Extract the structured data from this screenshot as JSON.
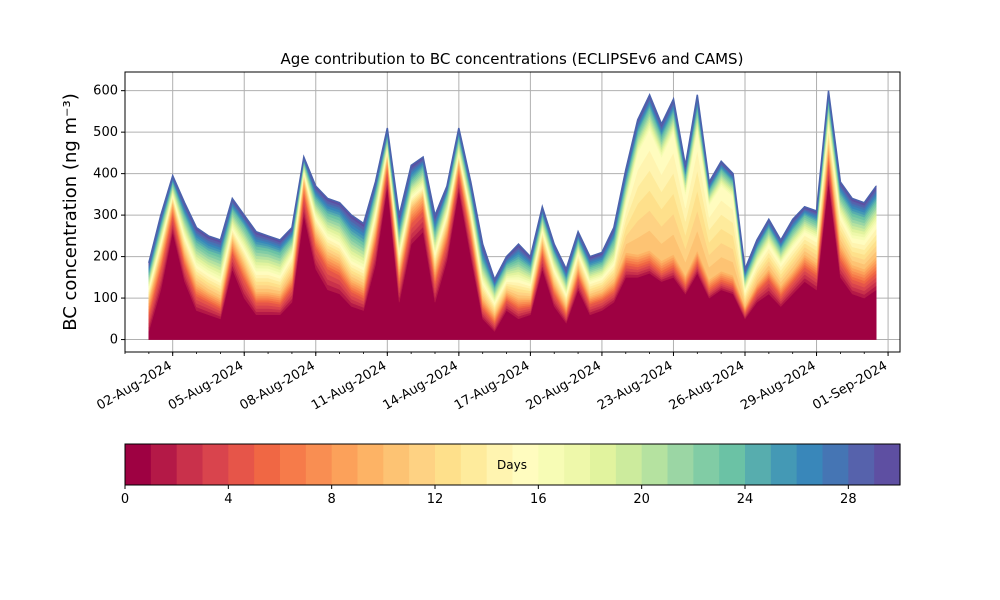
{
  "chart_data": {
    "type": "area",
    "stacked": true,
    "title": "Age contribution to BC concentrations (ECLIPSEv6 and CAMS)",
    "xlabel": "",
    "ylabel": "BC concentration (ng m⁻³)",
    "ylim": [
      -30,
      645
    ],
    "xlim": [
      "2024-07-31",
      "2024-09-01 12:00"
    ],
    "grid": true,
    "x_tick_labels": [
      "02-Aug-2024",
      "05-Aug-2024",
      "08-Aug-2024",
      "11-Aug-2024",
      "14-Aug-2024",
      "17-Aug-2024",
      "20-Aug-2024",
      "23-Aug-2024",
      "26-Aug-2024",
      "29-Aug-2024",
      "01-Sep-2024"
    ],
    "y_ticks": [
      0,
      100,
      200,
      300,
      400,
      500,
      600
    ],
    "x": [
      "2024-08-01",
      "2024-08-01 12:00",
      "2024-08-02",
      "2024-08-02 12:00",
      "2024-08-03",
      "2024-08-03 12:00",
      "2024-08-04",
      "2024-08-04 12:00",
      "2024-08-05",
      "2024-08-05 12:00",
      "2024-08-06",
      "2024-08-06 12:00",
      "2024-08-07",
      "2024-08-07 12:00",
      "2024-08-08",
      "2024-08-08 12:00",
      "2024-08-09",
      "2024-08-09 12:00",
      "2024-08-10",
      "2024-08-10 12:00",
      "2024-08-11",
      "2024-08-11 12:00",
      "2024-08-12",
      "2024-08-12 12:00",
      "2024-08-13",
      "2024-08-13 12:00",
      "2024-08-14",
      "2024-08-14 12:00",
      "2024-08-15",
      "2024-08-15 12:00",
      "2024-08-16",
      "2024-08-16 12:00",
      "2024-08-17",
      "2024-08-17 12:00",
      "2024-08-18",
      "2024-08-18 12:00",
      "2024-08-19",
      "2024-08-19 12:00",
      "2024-08-20",
      "2024-08-20 12:00",
      "2024-08-21",
      "2024-08-21 12:00",
      "2024-08-22",
      "2024-08-22 12:00",
      "2024-08-23",
      "2024-08-23 12:00",
      "2024-08-24",
      "2024-08-24 12:00",
      "2024-08-25",
      "2024-08-25 12:00",
      "2024-08-26",
      "2024-08-26 12:00",
      "2024-08-27",
      "2024-08-27 12:00",
      "2024-08-28",
      "2024-08-28 12:00",
      "2024-08-29",
      "2024-08-29 12:00",
      "2024-08-30",
      "2024-08-30 12:00",
      "2024-08-31",
      "2024-08-31 12:00"
    ],
    "total": [
      185,
      300,
      395,
      330,
      270,
      250,
      240,
      340,
      300,
      260,
      250,
      240,
      270,
      440,
      370,
      340,
      330,
      300,
      280,
      380,
      510,
      300,
      420,
      440,
      300,
      370,
      510,
      380,
      230,
      145,
      200,
      230,
      200,
      320,
      230,
      170,
      260,
      200,
      210,
      270,
      410,
      530,
      590,
      520,
      580,
      420,
      590,
      380,
      430,
      400,
      170,
      240,
      290,
      240,
      290,
      320,
      310,
      600,
      380,
      340,
      330,
      370
    ],
    "series": [
      {
        "values": [
          20,
          120,
          260,
          140,
          70,
          60,
          50,
          170,
          100,
          60,
          60,
          60,
          90,
          300,
          170,
          120,
          110,
          80,
          70,
          180,
          370,
          90,
          230,
          260,
          90,
          190,
          360,
          200,
          50,
          20,
          70,
          50,
          60,
          170,
          80,
          40,
          120,
          60,
          70,
          90,
          150,
          150,
          160,
          140,
          150,
          110,
          160,
          100,
          120,
          110,
          50,
          90,
          110,
          80,
          110,
          140,
          120,
          380,
          150,
          110,
          100,
          120
        ]
      },
      {
        "values": [
          40,
          50,
          40,
          40,
          35,
          30,
          25,
          40,
          45,
          30,
          30,
          25,
          35,
          50,
          50,
          50,
          45,
          35,
          30,
          50,
          40,
          45,
          50,
          50,
          45,
          45,
          40,
          45,
          25,
          20,
          25,
          25,
          20,
          35,
          30,
          20,
          30,
          25,
          25,
          25,
          30,
          25,
          25,
          20,
          25,
          20,
          25,
          20,
          20,
          20,
          15,
          25,
          35,
          25,
          30,
          35,
          35,
          50,
          40,
          35,
          35,
          40
        ]
      },
      {
        "values": [
          35,
          35,
          30,
          30,
          30,
          25,
          25,
          30,
          35,
          25,
          25,
          25,
          30,
          35,
          35,
          35,
          35,
          30,
          30,
          35,
          30,
          35,
          35,
          35,
          35,
          35,
          30,
          35,
          25,
          20,
          20,
          25,
          20,
          30,
          25,
          20,
          25,
          20,
          20,
          25,
          30,
          30,
          30,
          30,
          30,
          25,
          30,
          25,
          25,
          25,
          15,
          20,
          25,
          25,
          25,
          30,
          30,
          40,
          40,
          35,
          35,
          40
        ]
      },
      {
        "values": [
          30,
          30,
          20,
          40,
          45,
          45,
          45,
          30,
          40,
          50,
          50,
          45,
          50,
          20,
          40,
          45,
          45,
          45,
          45,
          40,
          20,
          40,
          30,
          25,
          40,
          35,
          20,
          30,
          40,
          30,
          30,
          45,
          35,
          30,
          35,
          30,
          35,
          35,
          35,
          45,
          120,
          245,
          290,
          250,
          295,
          195,
          290,
          180,
          205,
          190,
          40,
          50,
          60,
          55,
          60,
          55,
          60,
          50,
          70,
          65,
          70,
          80
        ]
      },
      {
        "values": [
          35,
          40,
          30,
          50,
          55,
          55,
          60,
          45,
          55,
          60,
          55,
          55,
          40,
          25,
          45,
          55,
          60,
          65,
          60,
          50,
          30,
          50,
          40,
          45,
          50,
          45,
          40,
          45,
          50,
          35,
          35,
          50,
          40,
          35,
          40,
          35,
          30,
          35,
          35,
          55,
          50,
          50,
          55,
          50,
          50,
          45,
          55,
          35,
          40,
          35,
          30,
          35,
          40,
          35,
          40,
          40,
          40,
          55,
          50,
          60,
          55,
          55
        ]
      },
      {
        "values": [
          25,
          25,
          15,
          30,
          35,
          35,
          35,
          25,
          25,
          35,
          30,
          30,
          25,
          10,
          30,
          35,
          35,
          45,
          45,
          25,
          20,
          40,
          35,
          25,
          40,
          20,
          20,
          25,
          40,
          20,
          20,
          35,
          25,
          20,
          20,
          25,
          20,
          25,
          25,
          30,
          30,
          30,
          30,
          30,
          30,
          25,
          30,
          20,
          20,
          20,
          20,
          20,
          20,
          20,
          25,
          20,
          25,
          25,
          30,
          35,
          35,
          35
        ]
      }
    ],
    "colorbar": {
      "label": "Days",
      "min": 0,
      "max": 30,
      "ticks": [
        0,
        4,
        8,
        12,
        16,
        20,
        24,
        28
      ],
      "colors": [
        "#9e0142",
        "#b41947",
        "#c9314b",
        "#d9444d",
        "#e65549",
        "#f06744",
        "#f67b4a",
        "#f98e52",
        "#fca15a",
        "#fdb365",
        "#fdc373",
        "#fed283",
        "#fee08b",
        "#feeb9c",
        "#fff4b0",
        "#fffcbf",
        "#f7fcb5",
        "#eef8aa",
        "#e1f39e",
        "#cceb9d",
        "#b5e2a0",
        "#9bd6a4",
        "#81cca5",
        "#6bc2a5",
        "#57adae",
        "#4499b5",
        "#3987ba",
        "#4575b4",
        "#5662ac",
        "#5e4fa2"
      ]
    }
  }
}
